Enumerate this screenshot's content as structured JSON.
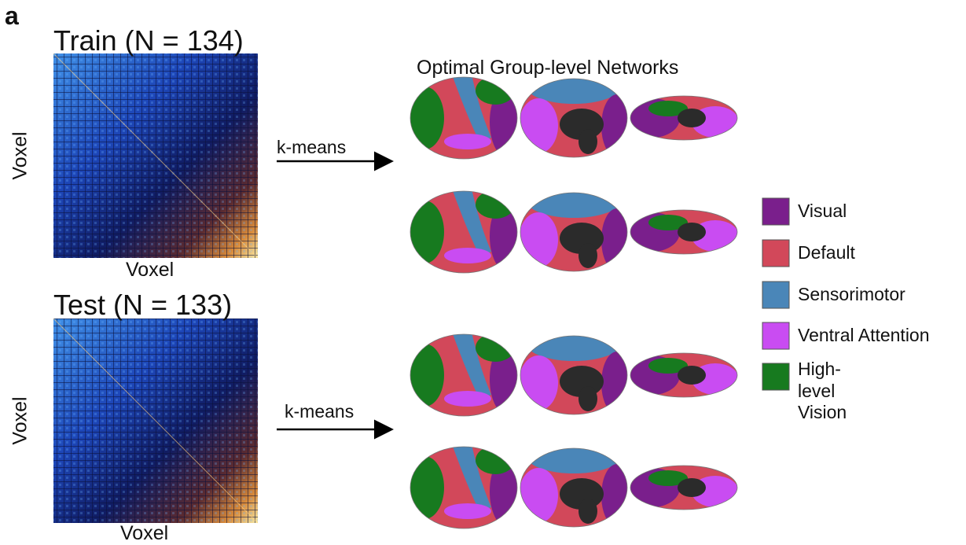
{
  "panel_label": "a",
  "train": {
    "title": "Train (N = 134)",
    "x_label": "Voxel",
    "y_label": "Voxel",
    "method": "k-means"
  },
  "test": {
    "title": "Test (N = 133)",
    "x_label": "Voxel",
    "y_label": "Voxel",
    "method": "k-means"
  },
  "networks_title": "Optimal Group-level Networks",
  "legend": [
    {
      "label": "Visual",
      "color": "#7a1f8c"
    },
    {
      "label": "Default",
      "color": "#d2485a"
    },
    {
      "label": "Sensorimotor",
      "color": "#4a86b8"
    },
    {
      "label": "Ventral Attention",
      "color": "#c94cf2"
    },
    {
      "label": "High-level Vision",
      "color": "#177a1f"
    }
  ]
}
